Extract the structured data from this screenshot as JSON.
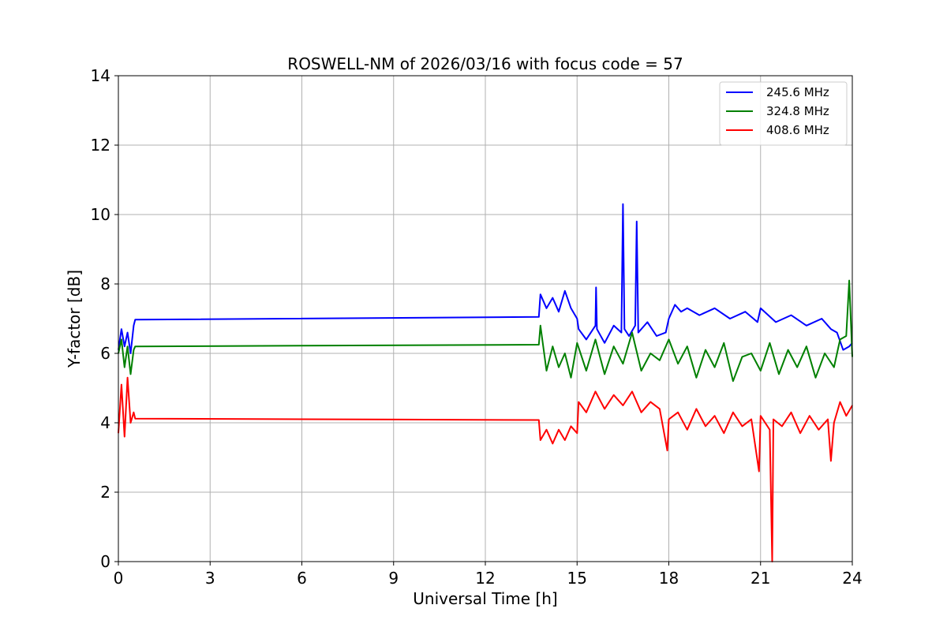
{
  "chart_data": {
    "type": "line",
    "title": "ROSWELL-NM of 2026/03/16 with focus code = 57",
    "xlabel": "Universal Time [h]",
    "ylabel": "Y-factor [dB]",
    "xlim": [
      0,
      24
    ],
    "ylim": [
      0,
      14
    ],
    "xticks": [
      0,
      3,
      6,
      9,
      12,
      15,
      18,
      21,
      24
    ],
    "yticks": [
      0,
      2,
      4,
      6,
      8,
      10,
      12,
      14
    ],
    "grid": true,
    "legend_position": "top-right",
    "series": [
      {
        "name": "245.6 MHz",
        "color": "#0000ff",
        "x": [
          0.0,
          0.1,
          0.2,
          0.3,
          0.4,
          0.5,
          0.55,
          13.75,
          13.8,
          14.0,
          14.2,
          14.4,
          14.6,
          14.8,
          15.0,
          15.05,
          15.3,
          15.6,
          15.62,
          15.65,
          15.9,
          16.2,
          16.45,
          16.5,
          16.55,
          16.7,
          16.9,
          16.95,
          17.0,
          17.3,
          17.6,
          17.9,
          18.0,
          18.2,
          18.4,
          18.6,
          19.0,
          19.5,
          20.0,
          20.5,
          20.9,
          21.0,
          21.5,
          22.0,
          22.5,
          23.0,
          23.3,
          23.5,
          23.7,
          23.9,
          24.0
        ],
        "y": [
          6.1,
          6.7,
          6.2,
          6.6,
          6.0,
          6.8,
          6.97,
          7.05,
          7.7,
          7.3,
          7.6,
          7.2,
          7.8,
          7.3,
          7.0,
          6.7,
          6.4,
          6.8,
          7.9,
          6.7,
          6.3,
          6.8,
          6.6,
          10.3,
          6.7,
          6.5,
          6.8,
          9.8,
          6.6,
          6.9,
          6.5,
          6.6,
          7.0,
          7.4,
          7.2,
          7.3,
          7.1,
          7.3,
          7.0,
          7.2,
          6.9,
          7.3,
          6.9,
          7.1,
          6.8,
          7.0,
          6.7,
          6.6,
          6.1,
          6.2,
          6.3
        ]
      },
      {
        "name": "324.8 MHz",
        "color": "#008000",
        "x": [
          0.0,
          0.1,
          0.2,
          0.3,
          0.4,
          0.5,
          0.55,
          13.75,
          13.8,
          14.0,
          14.2,
          14.4,
          14.6,
          14.8,
          15.0,
          15.3,
          15.6,
          15.9,
          16.2,
          16.5,
          16.8,
          17.1,
          17.4,
          17.7,
          18.0,
          18.3,
          18.6,
          18.9,
          19.2,
          19.5,
          19.8,
          20.1,
          20.4,
          20.7,
          21.0,
          21.3,
          21.6,
          21.9,
          22.2,
          22.5,
          22.8,
          23.1,
          23.4,
          23.6,
          23.8,
          23.9,
          24.0
        ],
        "y": [
          6.0,
          6.4,
          5.6,
          6.2,
          5.4,
          6.1,
          6.2,
          6.25,
          6.8,
          5.5,
          6.2,
          5.6,
          6.0,
          5.3,
          6.3,
          5.5,
          6.4,
          5.4,
          6.2,
          5.7,
          6.6,
          5.5,
          6.0,
          5.8,
          6.4,
          5.7,
          6.2,
          5.3,
          6.1,
          5.6,
          6.3,
          5.2,
          5.9,
          6.0,
          5.5,
          6.3,
          5.4,
          6.1,
          5.6,
          6.2,
          5.3,
          6.0,
          5.6,
          6.4,
          6.5,
          8.1,
          5.9
        ]
      },
      {
        "name": "408.6 MHz",
        "color": "#ff0000",
        "x": [
          0.0,
          0.1,
          0.2,
          0.3,
          0.4,
          0.5,
          0.55,
          13.75,
          13.8,
          14.0,
          14.2,
          14.4,
          14.6,
          14.8,
          15.0,
          15.05,
          15.3,
          15.6,
          15.9,
          16.2,
          16.5,
          16.8,
          17.1,
          17.4,
          17.7,
          17.95,
          18.0,
          18.3,
          18.6,
          18.9,
          19.2,
          19.5,
          19.8,
          20.1,
          20.4,
          20.7,
          20.95,
          21.0,
          21.3,
          21.38,
          21.42,
          21.7,
          22.0,
          22.3,
          22.6,
          22.9,
          23.2,
          23.3,
          23.4,
          23.6,
          23.8,
          24.0
        ],
        "y": [
          3.7,
          5.1,
          3.6,
          5.3,
          4.0,
          4.3,
          4.12,
          4.08,
          3.5,
          3.8,
          3.4,
          3.8,
          3.5,
          3.9,
          3.7,
          4.6,
          4.3,
          4.9,
          4.4,
          4.8,
          4.5,
          4.9,
          4.3,
          4.6,
          4.4,
          3.2,
          4.1,
          4.3,
          3.8,
          4.4,
          3.9,
          4.2,
          3.7,
          4.3,
          3.9,
          4.1,
          2.6,
          4.2,
          3.8,
          0.0,
          4.1,
          3.9,
          4.3,
          3.7,
          4.2,
          3.8,
          4.1,
          2.9,
          4.0,
          4.6,
          4.2,
          4.5
        ]
      }
    ]
  }
}
